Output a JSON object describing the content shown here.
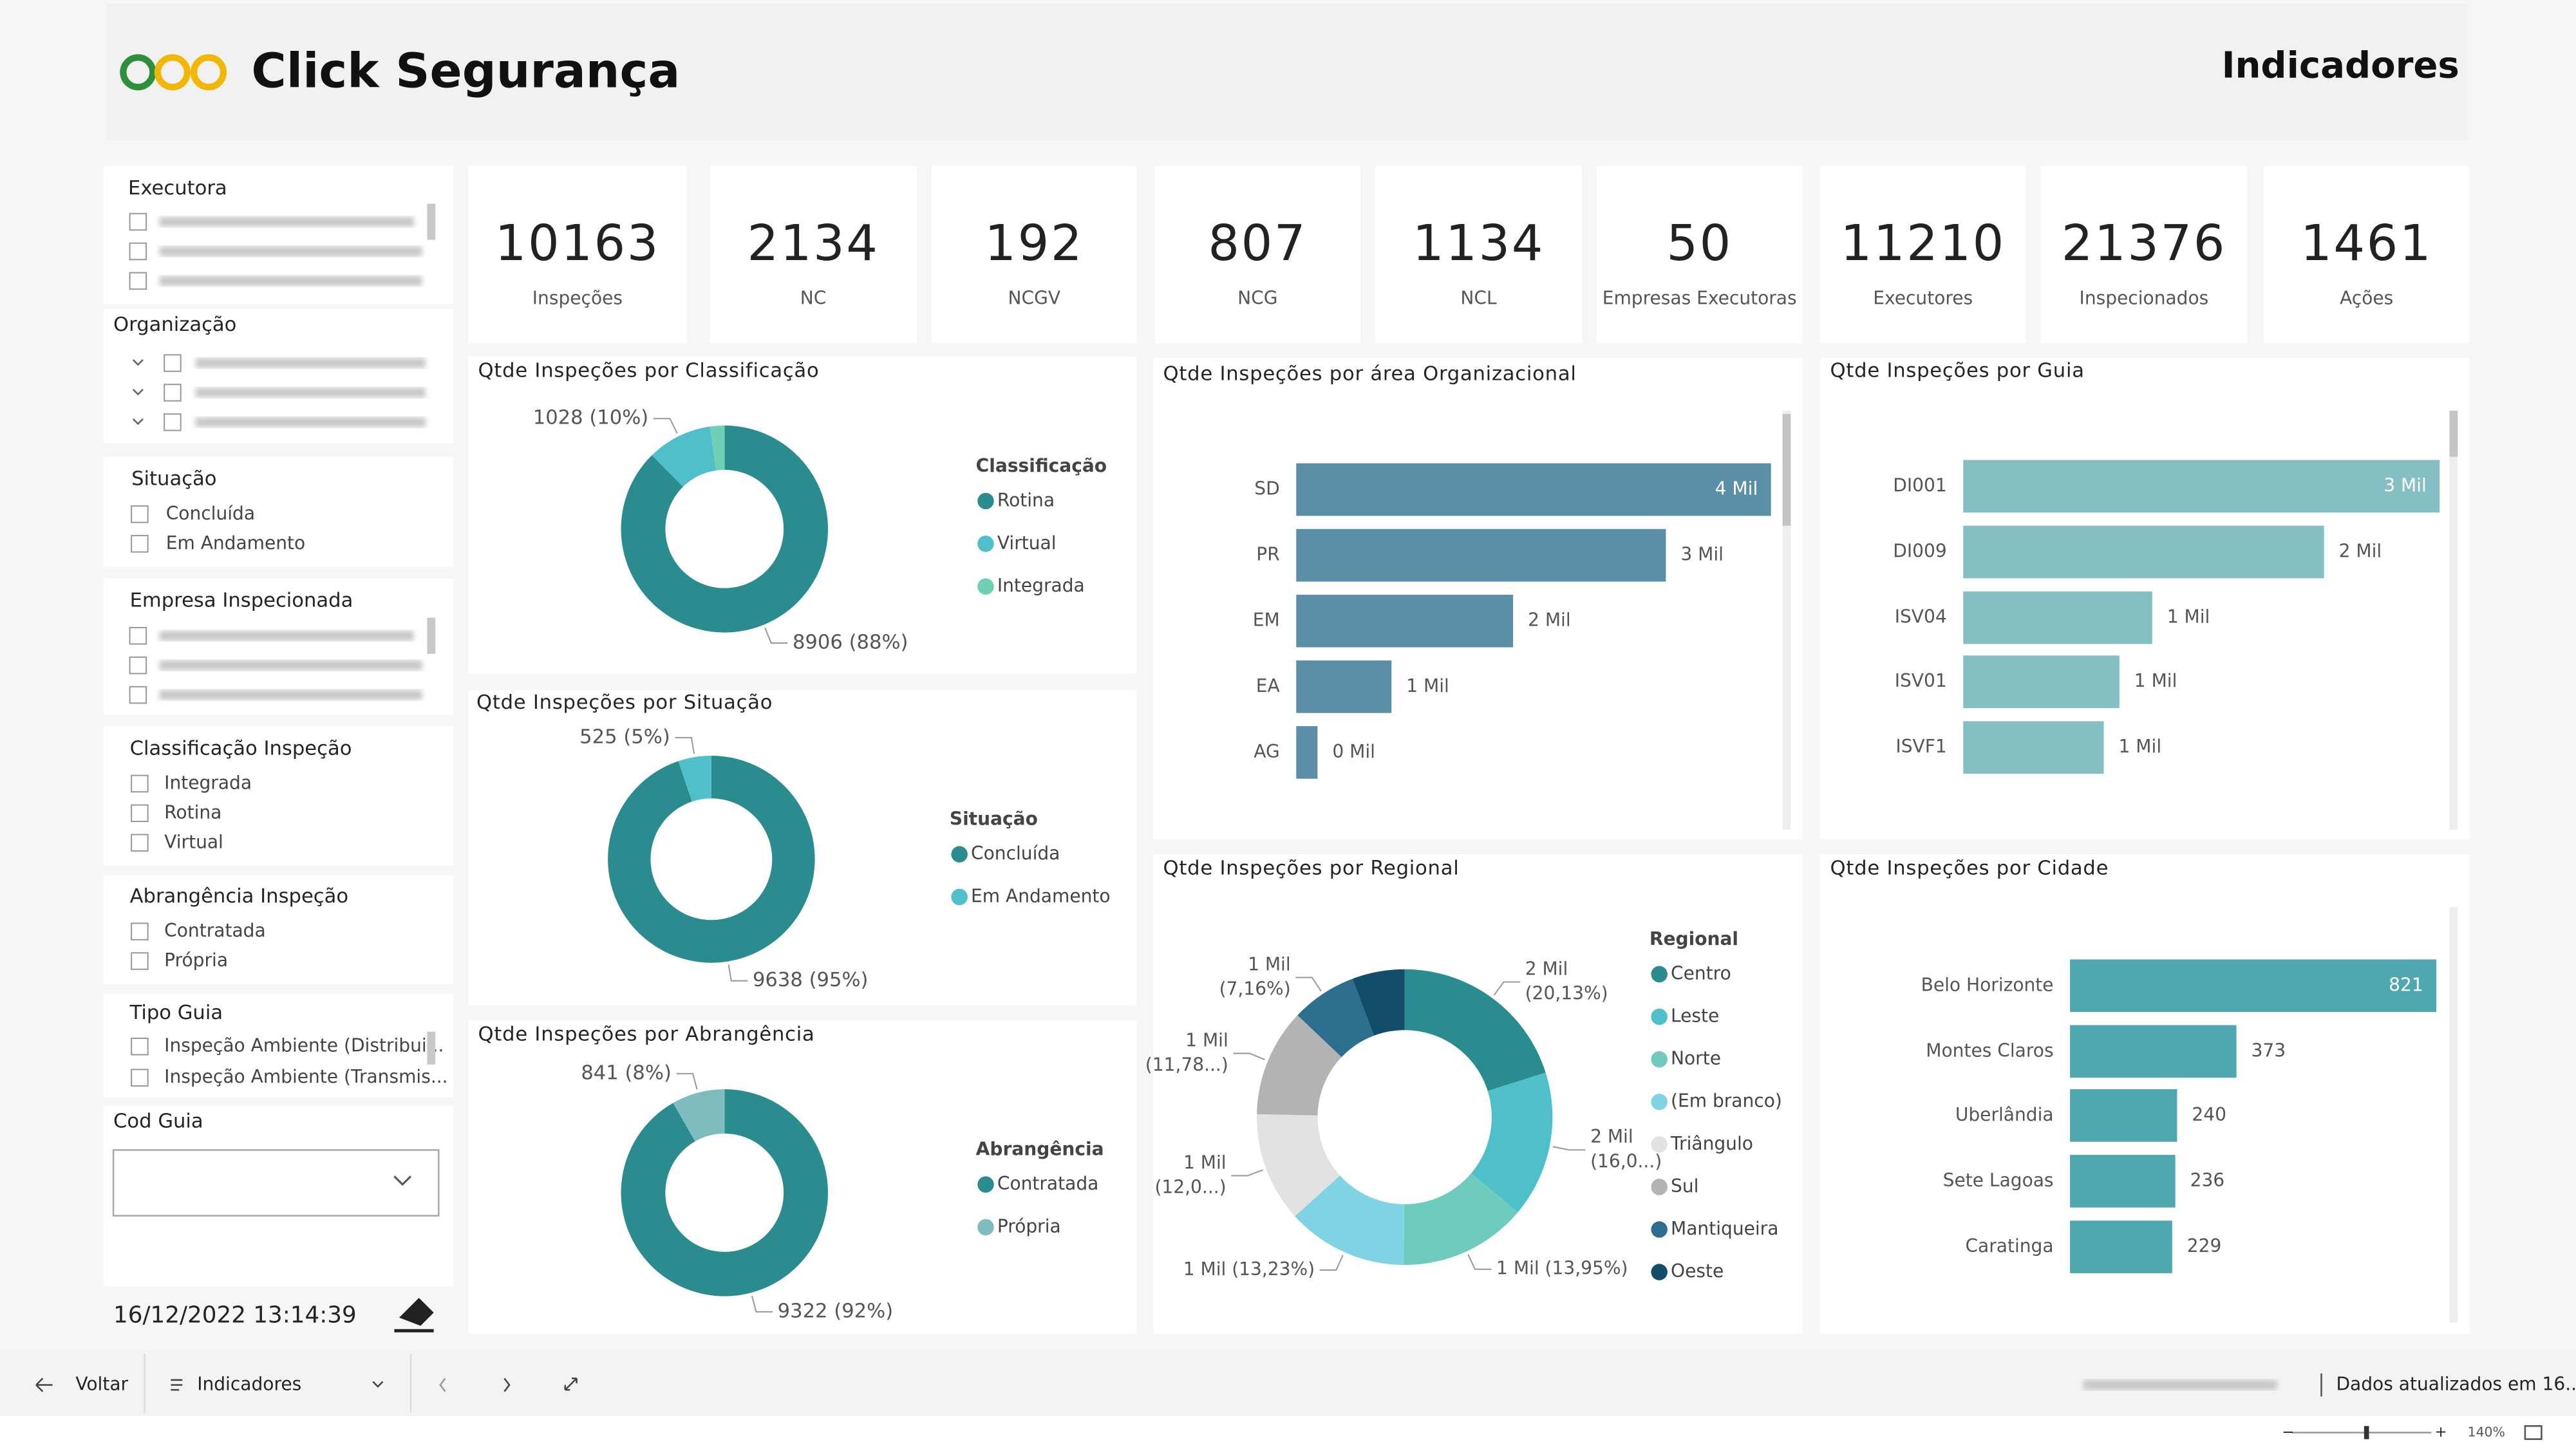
{
  "header": {
    "logo_text": "Click Segurança",
    "page_title": "Indicadores"
  },
  "kpis": [
    {
      "value": 10163,
      "label": "Inspeções"
    },
    {
      "value": 2134,
      "label": "NC"
    },
    {
      "value": 192,
      "label": "NCGV"
    },
    {
      "value": 807,
      "label": "NCG"
    },
    {
      "value": 1134,
      "label": "NCL"
    },
    {
      "value": 50,
      "label": "Empresas Executoras"
    },
    {
      "value": 11210,
      "label": "Executores"
    },
    {
      "value": 21376,
      "label": "Inspecionados"
    },
    {
      "value": 1461,
      "label": "Ações"
    }
  ],
  "filters": {
    "executora": {
      "title": "Executora"
    },
    "organizacao": {
      "title": "Organização"
    },
    "situacao": {
      "title": "Situação",
      "options": [
        "Concluída",
        "Em Andamento"
      ]
    },
    "empresa": {
      "title": "Empresa Inspecionada"
    },
    "classificacao": {
      "title": "Classificação Inspeção",
      "options": [
        "Integrada",
        "Rotina",
        "Virtual"
      ]
    },
    "abrangencia": {
      "title": "Abrangência Inspeção",
      "options": [
        "Contratada",
        "Própria"
      ]
    },
    "tipo_guia": {
      "title": "Tipo Guia",
      "options": [
        "Inspeção Ambiente (Distribui...",
        "Inspeção Ambiente (Transmis..."
      ]
    },
    "cod_guia": {
      "title": "Cod Guia"
    }
  },
  "timestamp": "16/12/2022 13:14:39",
  "footer": {
    "back": "Voltar",
    "page": "Indicadores",
    "updated": "Dados atualizados em 16...",
    "zoom": "140%"
  },
  "chart_data": [
    {
      "type": "donut",
      "title": "Qtde Inspeções por Classificação",
      "legend_title": "Classificação",
      "categories": [
        "Rotina",
        "Virtual",
        "Integrada"
      ],
      "values": [
        8906,
        1028,
        229
      ],
      "value_labels": [
        "8906 (88%)",
        "1028 (10%)",
        null
      ],
      "colors": [
        "#2b8c8f",
        "#4fc0c9",
        "#6fd0b5"
      ]
    },
    {
      "type": "donut",
      "title": "Qtde Inspeções por Situação",
      "legend_title": "Situação",
      "categories": [
        "Concluída",
        "Em Andamento"
      ],
      "values": [
        9638,
        525
      ],
      "value_labels": [
        "9638 (95%)",
        "525 (5%)"
      ],
      "colors": [
        "#2b8c8f",
        "#4fc0c9"
      ]
    },
    {
      "type": "donut",
      "title": "Qtde Inspeções por Abrangência",
      "legend_title": "Abrangência",
      "categories": [
        "Contratada",
        "Própria"
      ],
      "values": [
        9322,
        841
      ],
      "value_labels": [
        "9322 (92%)",
        "841 (8%)"
      ],
      "colors": [
        "#2b8c8f",
        "#7fbcbf"
      ]
    },
    {
      "type": "donut",
      "title": "Qtde Inspeções por Regional",
      "legend_title": "Regional",
      "categories": [
        "Centro",
        "Leste",
        "Norte",
        "(Em branco)",
        "Triângulo",
        "Sul",
        "Mantiqueira",
        "Oeste"
      ],
      "values": [
        2046,
        1626,
        1418,
        1345,
        1220,
        1197,
        728,
        583
      ],
      "value_labels": [
        [
          "2 Mil",
          "(20,13%)"
        ],
        [
          "2 Mil",
          "(16,0...)"
        ],
        [
          "1 Mil (13,95%)"
        ],
        [
          "1 Mil (13,23%)"
        ],
        [
          "1 Mil",
          "(12,0...)"
        ],
        [
          "1 Mil",
          "(11,78...)"
        ],
        [
          "1 Mil",
          "(7,16%)"
        ],
        null
      ],
      "colors": [
        "#2b8c8f",
        "#4fc0c9",
        "#6fcbbd",
        "#7fd3e3",
        "#e2e2e2",
        "#b3b3b3",
        "#2e6e8e",
        "#124e6b"
      ]
    },
    {
      "type": "hbar",
      "title": "Qtde Inspeções por área Organizacional",
      "categories": [
        "SD",
        "PR",
        "EM",
        "EA",
        "AG"
      ],
      "values": [
        4096,
        3189,
        1871,
        822,
        184
      ],
      "value_labels": [
        "4 Mil",
        "3 Mil",
        "2 Mil",
        "1 Mil",
        "0 Mil"
      ],
      "color": "#5b8fa8"
    },
    {
      "type": "hbar",
      "title": "Qtde Inspeções por Guia",
      "categories": [
        "DI001",
        "DI009",
        "ISV04",
        "ISV01",
        "ISVF1"
      ],
      "values": [
        3050,
        2310,
        1210,
        1000,
        900
      ],
      "value_labels": [
        "3 Mil",
        "2 Mil",
        "1 Mil",
        "1 Mil",
        "1 Mil"
      ],
      "color": "#84bfc4"
    },
    {
      "type": "hbar",
      "title": "Qtde Inspeções por Cidade",
      "categories": [
        "Belo Horizonte",
        "Montes Claros",
        "Uberlândia",
        "Sete Lagoas",
        "Caratinga"
      ],
      "values": [
        821,
        373,
        240,
        236,
        229
      ],
      "color": "#4fa7b0"
    }
  ]
}
